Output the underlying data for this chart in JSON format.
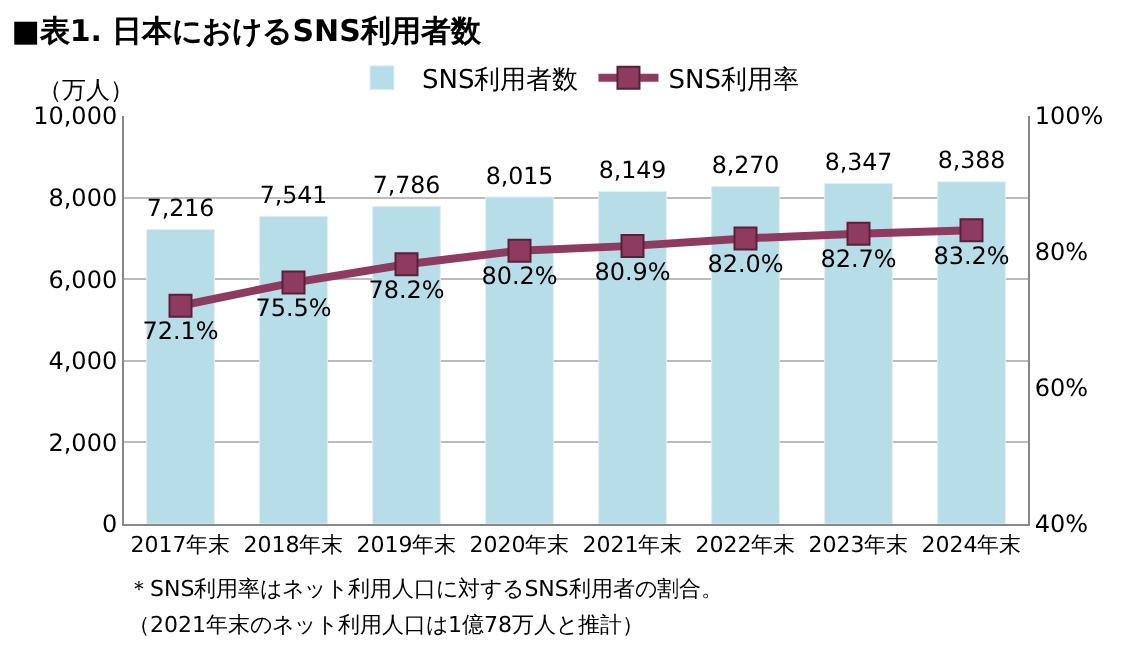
{
  "chart_data": {
    "type": "bar",
    "title": "■表1. 日本におけるSNS利用者数",
    "ylabel": "（万人）",
    "categories": [
      "2017年末",
      "2018年末",
      "2019年末",
      "2020年末",
      "2021年末",
      "2022年末",
      "2023年末",
      "2024年末"
    ],
    "series": [
      {
        "name": "SNS利用者数",
        "color": "#b7dee8",
        "values": [
          7216,
          7541,
          7786,
          8015,
          8149,
          8270,
          8347,
          8388
        ],
        "value_labels": [
          "7,216",
          "7,541",
          "7,786",
          "8,015",
          "8,149",
          "8,270",
          "8,347",
          "8,388"
        ]
      },
      {
        "name": "SNS利用率",
        "type": "line",
        "axis": "y2",
        "color": "#8e3b5f",
        "marker": "square",
        "values": [
          72.1,
          75.5,
          78.2,
          80.2,
          80.9,
          82.0,
          82.7,
          83.2
        ],
        "value_labels": [
          "72.1%",
          "75.5%",
          "78.2%",
          "80.2%",
          "80.9%",
          "82.0%",
          "82.7%",
          "83.2%"
        ]
      }
    ],
    "ylim": [
      0,
      10000
    ],
    "yticks": [
      0,
      {
        "value": 2000,
        "label": "2,000"
      },
      {
        "value": 4000,
        "label": "4,000"
      },
      {
        "value": 6000,
        "label": "6,000"
      },
      {
        "value": 8000,
        "label": "8,000"
      },
      {
        "value": 10000,
        "label": "10,000"
      }
    ],
    "y2lim": [
      40,
      100
    ],
    "y2ticks": [
      {
        "value": 40,
        "label": "40%"
      },
      {
        "value": 60,
        "label": "60%"
      },
      {
        "value": 80,
        "label": "80%"
      },
      {
        "value": 100,
        "label": "100%"
      }
    ],
    "grid": "y",
    "legend": "top",
    "annotations": [
      "＊SNS利用率はネット利用人口に対するSNS利用者の割合。",
      "（2021年末のネット利用人口は1億78万人と推計）"
    ]
  }
}
